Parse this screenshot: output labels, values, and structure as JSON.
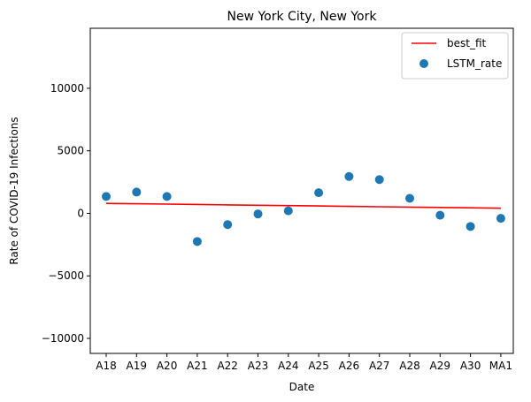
{
  "chart_data": {
    "type": "scatter",
    "title": "New York City, New York",
    "xlabel": "Date",
    "ylabel": "Rate of COVID-19 Infections",
    "categories": [
      "A18",
      "A19",
      "A20",
      "A21",
      "A22",
      "A23",
      "A24",
      "A25",
      "A26",
      "A27",
      "A28",
      "A29",
      "A30",
      "MA1"
    ],
    "ylim": [
      -11200,
      14800
    ],
    "yticks": [
      -10000,
      -5000,
      0,
      5000,
      10000
    ],
    "ytick_labels": [
      "−10000",
      "−5000",
      "0",
      "5000",
      "10000"
    ],
    "grid": false,
    "legend_position": "top-right",
    "series": [
      {
        "name": "best_fit",
        "kind": "line",
        "color": "#ff0000",
        "values": [
          800,
          770,
          740,
          710,
          680,
          650,
          620,
          590,
          560,
          530,
          500,
          470,
          440,
          410
        ]
      },
      {
        "name": "LSTM_rate",
        "kind": "scatter",
        "color": "#1f77b4",
        "values": [
          1350,
          1700,
          1350,
          -2250,
          -900,
          -50,
          200,
          1650,
          2950,
          2700,
          1200,
          -150,
          -1050,
          -400
        ]
      }
    ]
  }
}
